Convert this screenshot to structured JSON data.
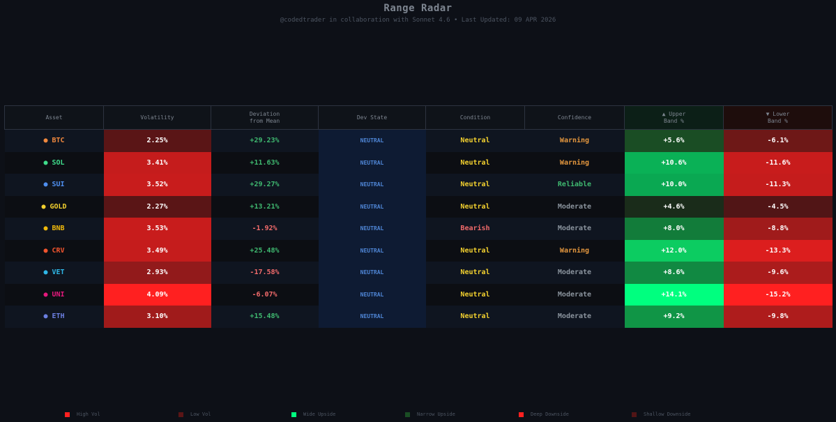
{
  "header": {
    "title": "Range Radar",
    "subtitle": "@codedtrader in collaboration with Sonnet 4.6  •  Last Updated: 09 APR 2026"
  },
  "columns": {
    "asset": "Asset",
    "volatility": "Volatility",
    "deviation_line1": "Deviation",
    "deviation_line2": "from Mean",
    "dev_state": "Dev State",
    "condition": "Condition",
    "confidence": "Confidence",
    "upper_line1": "▲ Upper",
    "upper_line2": "Band %",
    "lower_line1": "▼ Lower",
    "lower_line2": "Band %"
  },
  "rows": [
    {
      "asset": "BTC",
      "dot_color": "#f0883e",
      "name_color": "#f0883e",
      "volatility": "2.25%",
      "vol_color": "#5a1516",
      "deviation": "+29.23%",
      "dev_sign": "pos",
      "dev_state": "NEUTRAL",
      "condition": "Neutral",
      "cond_type": "neutral",
      "confidence": "Warning",
      "conf_color": "#e3963e",
      "upper": "+5.6%",
      "upper_color": "#1a4d24",
      "lower": "-6.1%",
      "lower_color": "#6e1817"
    },
    {
      "asset": "SOL",
      "dot_color": "#3fdc8b",
      "name_color": "#3fdc8b",
      "volatility": "3.41%",
      "vol_color": "#c51c1c",
      "deviation": "+11.63%",
      "dev_sign": "pos",
      "dev_state": "NEUTRAL",
      "condition": "Neutral",
      "cond_type": "neutral",
      "confidence": "Warning",
      "conf_color": "#e3963e",
      "upper": "+10.6%",
      "upper_color": "#0ab156",
      "lower": "-11.6%",
      "lower_color": "#c81c1c"
    },
    {
      "asset": "SUI",
      "dot_color": "#4f8ff0",
      "name_color": "#4f8ff0",
      "volatility": "3.52%",
      "vol_color": "#c81c1c",
      "deviation": "+29.27%",
      "dev_sign": "pos",
      "dev_state": "NEUTRAL",
      "condition": "Neutral",
      "cond_type": "neutral",
      "confidence": "Reliable",
      "conf_color": "#3fb970",
      "upper": "+10.0%",
      "upper_color": "#0aa852",
      "lower": "-11.3%",
      "lower_color": "#c51c1c"
    },
    {
      "asset": "GOLD",
      "dot_color": "#f2d02f",
      "name_color": "#f2d02f",
      "volatility": "2.27%",
      "vol_color": "#5a1516",
      "deviation": "+13.21%",
      "dev_sign": "pos",
      "dev_state": "NEUTRAL",
      "condition": "Neutral",
      "cond_type": "neutral",
      "confidence": "Moderate",
      "conf_color": "#8b949e",
      "upper": "+4.6%",
      "upper_color": "#1a2c1a",
      "lower": "-4.5%",
      "lower_color": "#511516"
    },
    {
      "asset": "BNB",
      "dot_color": "#f0b90b",
      "name_color": "#f0b90b",
      "volatility": "3.53%",
      "vol_color": "#c81c1c",
      "deviation": "-1.92%",
      "dev_sign": "neg",
      "dev_state": "NEUTRAL",
      "condition": "Bearish",
      "cond_type": "bear",
      "confidence": "Moderate",
      "conf_color": "#8b949e",
      "upper": "+8.0%",
      "upper_color": "#127c3a",
      "lower": "-8.8%",
      "lower_color": "#a01b1b"
    },
    {
      "asset": "CRV",
      "dot_color": "#f0542e",
      "name_color": "#f0542e",
      "volatility": "3.49%",
      "vol_color": "#c51c1c",
      "deviation": "+25.48%",
      "dev_sign": "pos",
      "dev_state": "NEUTRAL",
      "condition": "Neutral",
      "cond_type": "neutral",
      "confidence": "Warning",
      "conf_color": "#e3963e",
      "upper": "+12.0%",
      "upper_color": "#0ccc61",
      "lower": "-13.3%",
      "lower_color": "#dc1e1e"
    },
    {
      "asset": "VET",
      "dot_color": "#2fb8e8",
      "name_color": "#2fb8e8",
      "volatility": "2.93%",
      "vol_color": "#921a1b",
      "deviation": "-17.58%",
      "dev_sign": "neg",
      "dev_state": "NEUTRAL",
      "condition": "Neutral",
      "cond_type": "neutral",
      "confidence": "Moderate",
      "conf_color": "#8b949e",
      "upper": "+8.6%",
      "upper_color": "#118942",
      "lower": "-9.6%",
      "lower_color": "#ab1c1c"
    },
    {
      "asset": "UNI",
      "dot_color": "#e6197d",
      "name_color": "#e6197d",
      "volatility": "4.09%",
      "vol_color": "#ff2020",
      "deviation": "-6.07%",
      "dev_sign": "neg",
      "dev_state": "NEUTRAL",
      "condition": "Neutral",
      "cond_type": "neutral",
      "confidence": "Moderate",
      "conf_color": "#8b949e",
      "upper": "+14.1%",
      "upper_color": "#00ff7f",
      "lower": "-15.2%",
      "lower_color": "#ff2020"
    },
    {
      "asset": "ETH",
      "dot_color": "#6b7fe0",
      "name_color": "#6b7fe0",
      "volatility": "3.10%",
      "vol_color": "#a01b1b",
      "deviation": "+15.48%",
      "dev_sign": "pos",
      "dev_state": "NEUTRAL",
      "condition": "Neutral",
      "cond_type": "neutral",
      "confidence": "Moderate",
      "conf_color": "#8b949e",
      "upper": "+9.2%",
      "upper_color": "#109546",
      "lower": "-9.8%",
      "lower_color": "#ae1c1c"
    }
  ],
  "legend": [
    {
      "label": "High Vol",
      "color": "#ff2020"
    },
    {
      "label": "Low Vol",
      "color": "#5a1516"
    },
    {
      "label": "Wide Upside",
      "color": "#00ff7f"
    },
    {
      "label": "Narrow Upside",
      "color": "#1a4d24"
    },
    {
      "label": "Deep Downside",
      "color": "#ff2020"
    },
    {
      "label": "Shallow Downside",
      "color": "#511516"
    }
  ]
}
